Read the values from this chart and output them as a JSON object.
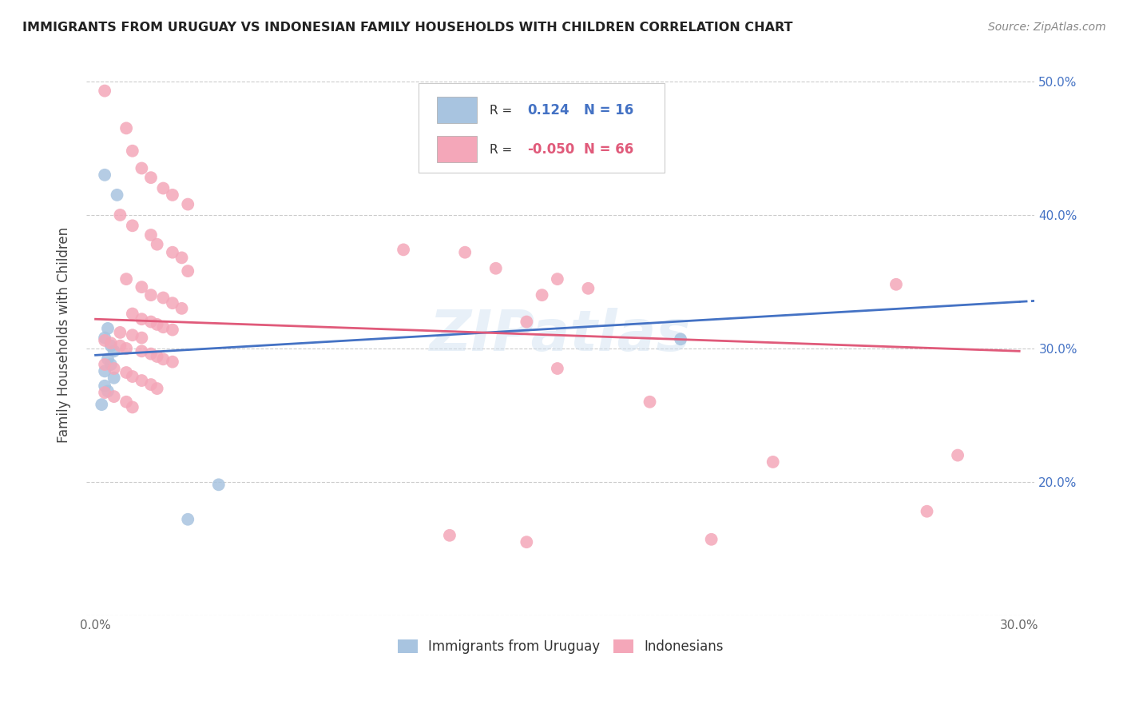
{
  "title": "IMMIGRANTS FROM URUGUAY VS INDONESIAN FAMILY HOUSEHOLDS WITH CHILDREN CORRELATION CHART",
  "source": "Source: ZipAtlas.com",
  "ylabel": "Family Households with Children",
  "x_min": 0.0,
  "x_max": 0.3,
  "y_min": 0.1,
  "y_max": 0.52,
  "x_ticks": [
    0.0,
    0.05,
    0.1,
    0.15,
    0.2,
    0.25,
    0.3
  ],
  "x_tick_labels": [
    "0.0%",
    "",
    "",
    "",
    "",
    "",
    "30.0%"
  ],
  "y_ticks": [
    0.1,
    0.2,
    0.3,
    0.4,
    0.5
  ],
  "y_tick_labels": [
    "",
    "20.0%",
    "30.0%",
    "40.0%",
    "50.0%"
  ],
  "legend_r_blue": "0.124",
  "legend_n_blue": "16",
  "legend_r_pink": "-0.050",
  "legend_n_pink": "66",
  "blue_color": "#a8c4e0",
  "pink_color": "#f4a7b9",
  "line_blue": "#4472c4",
  "line_pink": "#e05a7a",
  "watermark": "ZIPatlas",
  "uruguay_points": [
    [
      0.003,
      0.43
    ],
    [
      0.007,
      0.415
    ],
    [
      0.004,
      0.315
    ],
    [
      0.003,
      0.308
    ],
    [
      0.005,
      0.302
    ],
    [
      0.006,
      0.298
    ],
    [
      0.004,
      0.292
    ],
    [
      0.005,
      0.288
    ],
    [
      0.003,
      0.283
    ],
    [
      0.006,
      0.278
    ],
    [
      0.003,
      0.272
    ],
    [
      0.004,
      0.268
    ],
    [
      0.19,
      0.307
    ],
    [
      0.002,
      0.258
    ],
    [
      0.04,
      0.198
    ],
    [
      0.03,
      0.172
    ]
  ],
  "indonesian_points": [
    [
      0.003,
      0.493
    ],
    [
      0.01,
      0.465
    ],
    [
      0.012,
      0.448
    ],
    [
      0.015,
      0.435
    ],
    [
      0.018,
      0.428
    ],
    [
      0.022,
      0.42
    ],
    [
      0.025,
      0.415
    ],
    [
      0.03,
      0.408
    ],
    [
      0.008,
      0.4
    ],
    [
      0.012,
      0.392
    ],
    [
      0.018,
      0.385
    ],
    [
      0.02,
      0.378
    ],
    [
      0.025,
      0.372
    ],
    [
      0.028,
      0.368
    ],
    [
      0.03,
      0.358
    ],
    [
      0.01,
      0.352
    ],
    [
      0.015,
      0.346
    ],
    [
      0.018,
      0.34
    ],
    [
      0.022,
      0.338
    ],
    [
      0.025,
      0.334
    ],
    [
      0.028,
      0.33
    ],
    [
      0.012,
      0.326
    ],
    [
      0.015,
      0.322
    ],
    [
      0.018,
      0.32
    ],
    [
      0.02,
      0.318
    ],
    [
      0.022,
      0.316
    ],
    [
      0.025,
      0.314
    ],
    [
      0.008,
      0.312
    ],
    [
      0.012,
      0.31
    ],
    [
      0.015,
      0.308
    ],
    [
      0.003,
      0.306
    ],
    [
      0.005,
      0.304
    ],
    [
      0.008,
      0.302
    ],
    [
      0.01,
      0.3
    ],
    [
      0.015,
      0.298
    ],
    [
      0.018,
      0.296
    ],
    [
      0.02,
      0.294
    ],
    [
      0.022,
      0.292
    ],
    [
      0.025,
      0.29
    ],
    [
      0.003,
      0.288
    ],
    [
      0.006,
      0.285
    ],
    [
      0.01,
      0.282
    ],
    [
      0.012,
      0.279
    ],
    [
      0.015,
      0.276
    ],
    [
      0.018,
      0.273
    ],
    [
      0.02,
      0.27
    ],
    [
      0.003,
      0.267
    ],
    [
      0.006,
      0.264
    ],
    [
      0.01,
      0.26
    ],
    [
      0.012,
      0.256
    ],
    [
      0.13,
      0.36
    ],
    [
      0.15,
      0.352
    ],
    [
      0.16,
      0.345
    ],
    [
      0.145,
      0.34
    ],
    [
      0.14,
      0.32
    ],
    [
      0.26,
      0.348
    ],
    [
      0.12,
      0.372
    ],
    [
      0.1,
      0.374
    ],
    [
      0.28,
      0.22
    ],
    [
      0.22,
      0.215
    ],
    [
      0.15,
      0.285
    ],
    [
      0.18,
      0.26
    ],
    [
      0.27,
      0.178
    ],
    [
      0.2,
      0.157
    ],
    [
      0.14,
      0.155
    ],
    [
      0.115,
      0.16
    ]
  ]
}
